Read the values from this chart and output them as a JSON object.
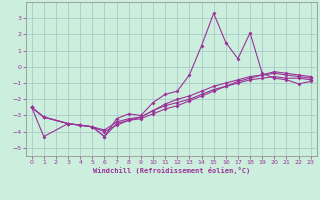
{
  "xlabel": "Windchill (Refroidissement éolien,°C)",
  "background_color": "#cceedd",
  "grid_color": "#aacccc",
  "line_color": "#993399",
  "xlim": [
    -0.5,
    23.5
  ],
  "ylim": [
    -5.5,
    4.0
  ],
  "xticks": [
    0,
    1,
    2,
    3,
    4,
    5,
    6,
    7,
    8,
    9,
    10,
    11,
    12,
    13,
    14,
    15,
    16,
    17,
    18,
    19,
    20,
    21,
    22,
    23
  ],
  "yticks": [
    -5,
    -4,
    -3,
    -2,
    -1,
    0,
    1,
    2,
    3
  ],
  "line1_x": [
    0,
    1,
    3,
    4,
    5,
    6,
    7,
    8,
    9,
    10,
    11,
    12,
    13,
    14,
    15,
    16,
    17,
    18,
    19,
    20,
    21,
    22,
    23
  ],
  "line1_y": [
    -2.5,
    -3.1,
    -3.5,
    -3.6,
    -3.7,
    -4.3,
    -3.2,
    -2.9,
    -3.0,
    -2.2,
    -1.7,
    -1.5,
    -0.5,
    1.3,
    3.3,
    1.5,
    0.5,
    2.1,
    -0.4,
    -0.7,
    -0.8,
    -1.05,
    -0.9
  ],
  "line2_x": [
    0,
    1,
    3,
    4,
    5,
    6,
    7,
    8,
    9,
    10,
    11,
    12,
    13,
    14,
    15,
    16,
    17,
    18,
    19,
    20,
    21,
    22,
    23
  ],
  "line2_y": [
    -2.5,
    -3.1,
    -3.5,
    -3.6,
    -3.7,
    -3.9,
    -3.4,
    -3.2,
    -3.1,
    -2.7,
    -2.4,
    -2.2,
    -2.0,
    -1.7,
    -1.4,
    -1.2,
    -1.0,
    -0.8,
    -0.7,
    -0.6,
    -0.7,
    -0.7,
    -0.8
  ],
  "line3_x": [
    0,
    1,
    3,
    4,
    5,
    6,
    7,
    8,
    9,
    10,
    11,
    12,
    13,
    14,
    15,
    16,
    17,
    18,
    19,
    20,
    21,
    22,
    23
  ],
  "line3_y": [
    -2.5,
    -3.1,
    -3.5,
    -3.6,
    -3.7,
    -4.0,
    -3.6,
    -3.3,
    -3.1,
    -2.7,
    -2.3,
    -2.0,
    -1.8,
    -1.5,
    -1.2,
    -1.0,
    -0.8,
    -0.6,
    -0.5,
    -0.4,
    -0.5,
    -0.6,
    -0.7
  ],
  "line4_x": [
    0,
    1,
    3,
    4,
    5,
    6,
    7,
    8,
    9,
    10,
    11,
    12,
    13,
    14,
    15,
    16,
    17,
    18,
    19,
    20,
    21,
    22,
    23
  ],
  "line4_y": [
    -2.5,
    -4.3,
    -3.5,
    -3.6,
    -3.7,
    -4.3,
    -3.5,
    -3.3,
    -3.2,
    -2.9,
    -2.6,
    -2.4,
    -2.1,
    -1.8,
    -1.5,
    -1.2,
    -0.9,
    -0.7,
    -0.5,
    -0.3,
    -0.4,
    -0.5,
    -0.6
  ]
}
